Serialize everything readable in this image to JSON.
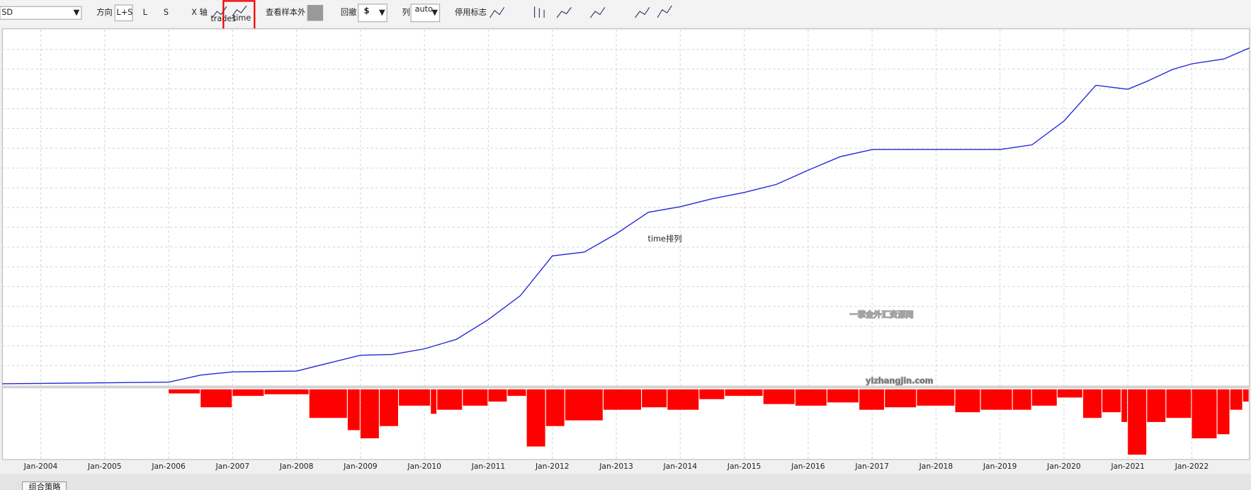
{
  "toolbar": {
    "symbol": "SD",
    "direction_label": "方向",
    "direction_options": [
      "L+S",
      "L",
      "S"
    ],
    "x_axis_label": "X 轴",
    "x_axis_options": [
      "trades",
      "time"
    ],
    "out_of_sample_label": "查看样本外",
    "drawdown_label": "回撤",
    "columns_label": "列",
    "columns_option": "auto",
    "flags_label": "停用标志"
  },
  "chart_data": {
    "type": "line",
    "annotation": "time排列",
    "watermark": [
      "一掌金外汇资源网",
      "yizhangjin.com"
    ],
    "x": [
      2003.4,
      2006.0,
      2006.5,
      2007.0,
      2008.0,
      2008.5,
      2009.0,
      2009.5,
      2010.0,
      2010.5,
      2011.0,
      2011.5,
      2012.0,
      2012.5,
      2013.0,
      2013.5,
      2014.0,
      2014.5,
      2015.0,
      2015.5,
      2016.0,
      2016.5,
      2017.0,
      2018.0,
      2018.5,
      2019.0,
      2019.5,
      2020.0,
      2020.5,
      2021.0,
      2021.3,
      2021.7,
      2022.0,
      2022.5,
      2022.9
    ],
    "series": [
      {
        "name": "equity",
        "color": "#2424d8",
        "values": [
          0,
          2,
          11,
          15,
          16,
          26,
          36,
          37,
          44,
          56,
          81,
          111,
          161,
          166,
          189,
          216,
          223,
          233,
          241,
          251,
          269,
          286,
          295,
          295,
          295,
          295,
          301,
          331,
          376,
          371,
          381,
          396,
          403,
          409,
          423
        ]
      }
    ],
    "xlim": [
      2003.4,
      2022.9
    ],
    "ylim": [
      -2,
      446
    ],
    "xticks": [
      {
        "value": 2004,
        "label": "Jan-2004"
      },
      {
        "value": 2005,
        "label": "Jan-2005"
      },
      {
        "value": 2006,
        "label": "Jan-2006"
      },
      {
        "value": 2007,
        "label": "Jan-2007"
      },
      {
        "value": 2008,
        "label": "Jan-2008"
      },
      {
        "value": 2009,
        "label": "Jan-2009"
      },
      {
        "value": 2010,
        "label": "Jan-2010"
      },
      {
        "value": 2011,
        "label": "Jan-2011"
      },
      {
        "value": 2012,
        "label": "Jan-2012"
      },
      {
        "value": 2013,
        "label": "Jan-2013"
      },
      {
        "value": 2014,
        "label": "Jan-2014"
      },
      {
        "value": 2015,
        "label": "Jan-2015"
      },
      {
        "value": 2016,
        "label": "Jan-2016"
      },
      {
        "value": 2017,
        "label": "Jan-2017"
      },
      {
        "value": 2018,
        "label": "Jan-2018"
      },
      {
        "value": 2019,
        "label": "Jan-2019"
      },
      {
        "value": 2020,
        "label": "Jan-2020"
      },
      {
        "value": 2021,
        "label": "Jan-2021"
      },
      {
        "value": 2022,
        "label": "Jan-2022"
      }
    ],
    "grid": true,
    "drawdown": {
      "color": "#ff0000",
      "ylim": [
        -85,
        0
      ],
      "x": [
        2006.0,
        2006.5,
        2007.0,
        2007.5,
        2008.2,
        2008.8,
        2009.0,
        2009.3,
        2009.6,
        2010.1,
        2010.2,
        2010.6,
        2011.0,
        2011.3,
        2011.6,
        2011.9,
        2012.2,
        2012.8,
        2013.4,
        2013.8,
        2014.3,
        2014.7,
        2015.3,
        2015.8,
        2016.3,
        2016.8,
        2017.2,
        2017.7,
        2018.3,
        2018.7,
        2019.2,
        2019.5,
        2019.9,
        2020.3,
        2020.6,
        2020.9,
        2021.0,
        2021.3,
        2021.6,
        2022.0,
        2022.4,
        2022.6,
        2022.8
      ],
      "values": [
        -5,
        -22,
        -8,
        -6,
        -35,
        -50,
        -60,
        -45,
        -20,
        -30,
        -25,
        -20,
        -15,
        -8,
        -70,
        -45,
        -38,
        -25,
        -22,
        -25,
        -12,
        -8,
        -18,
        -20,
        -16,
        -25,
        -22,
        -20,
        -28,
        -25,
        -25,
        -20,
        -10,
        -35,
        -28,
        -40,
        -80,
        -40,
        -35,
        -60,
        -55,
        -25,
        -15
      ]
    }
  },
  "status_tab": "组合策略"
}
